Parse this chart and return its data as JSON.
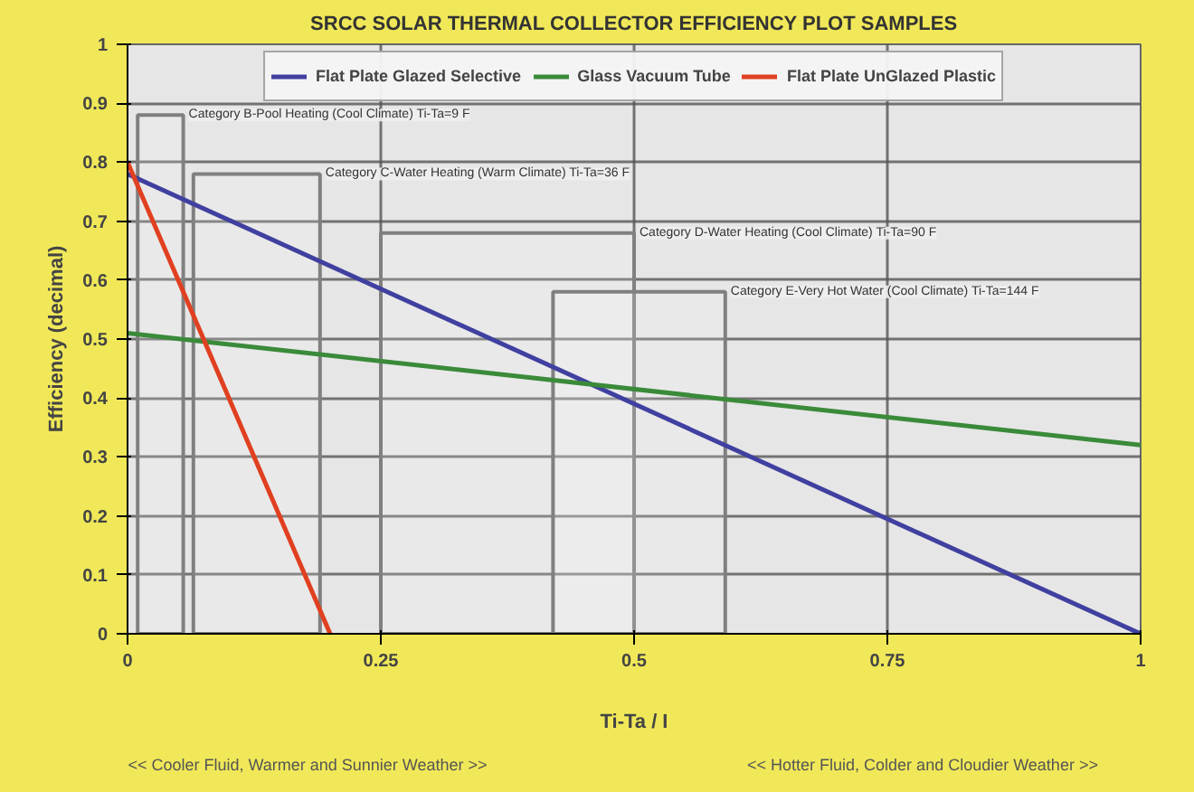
{
  "chart_data": {
    "type": "line",
    "title": "SRCC SOLAR THERMAL COLLECTOR EFFICIENCY PLOT SAMPLES",
    "xlabel": "Ti-Ta / I",
    "ylabel": "Efficiency (decimal)",
    "x": [
      0,
      1
    ],
    "series": [
      {
        "name": "Flat Plate Glazed Selective",
        "color": "#4040a0",
        "values": [
          0.78,
          0
        ]
      },
      {
        "name": "Glass Vacuum Tube",
        "color": "#3a8a3a",
        "values": [
          0.51,
          0.32
        ]
      },
      {
        "name": "Flat Plate UnGlazed Plastic",
        "color": "#e04020",
        "x": [
          0,
          0.2
        ],
        "values": [
          0.8,
          0
        ]
      }
    ],
    "xlim": [
      0,
      1
    ],
    "ylim": [
      0,
      1
    ],
    "xticks": [
      0,
      0.25,
      0.5,
      0.75,
      1
    ],
    "yticks": [
      0,
      0.1,
      0.2,
      0.3,
      0.4,
      0.5,
      0.6,
      0.7,
      0.8,
      0.9,
      1
    ],
    "grid": true,
    "legend": "top",
    "marker": "none",
    "line_style": "solid",
    "bands": [
      {
        "axis": "x",
        "from": 0.01,
        "to": 0.055,
        "label": "Category B-Pool Heating (Cool Climate) Ti-Ta=9 F",
        "color": "#808080"
      },
      {
        "axis": "x",
        "from": 0.065,
        "to": 0.19,
        "label": "Category C-Water Heating (Warm Climate) Ti-Ta=36 F",
        "color": "#808080"
      },
      {
        "axis": "x",
        "from": 0.25,
        "to": 0.5,
        "label": "Category D-Water Heating (Cool Climate) Ti-Ta=90 F",
        "color": "#808080"
      },
      {
        "axis": "x",
        "from": 0.42,
        "to": 0.59,
        "label": "Category E-Very Hot Water (Cool Climate) Ti-Ta=144 F",
        "color": "#808080"
      }
    ],
    "annotations": [
      "<< Cooler Fluid, Warmer and Sunnier Weather >>",
      "<< Hotter Fluid, Colder and Cloudier Weather >>"
    ]
  }
}
